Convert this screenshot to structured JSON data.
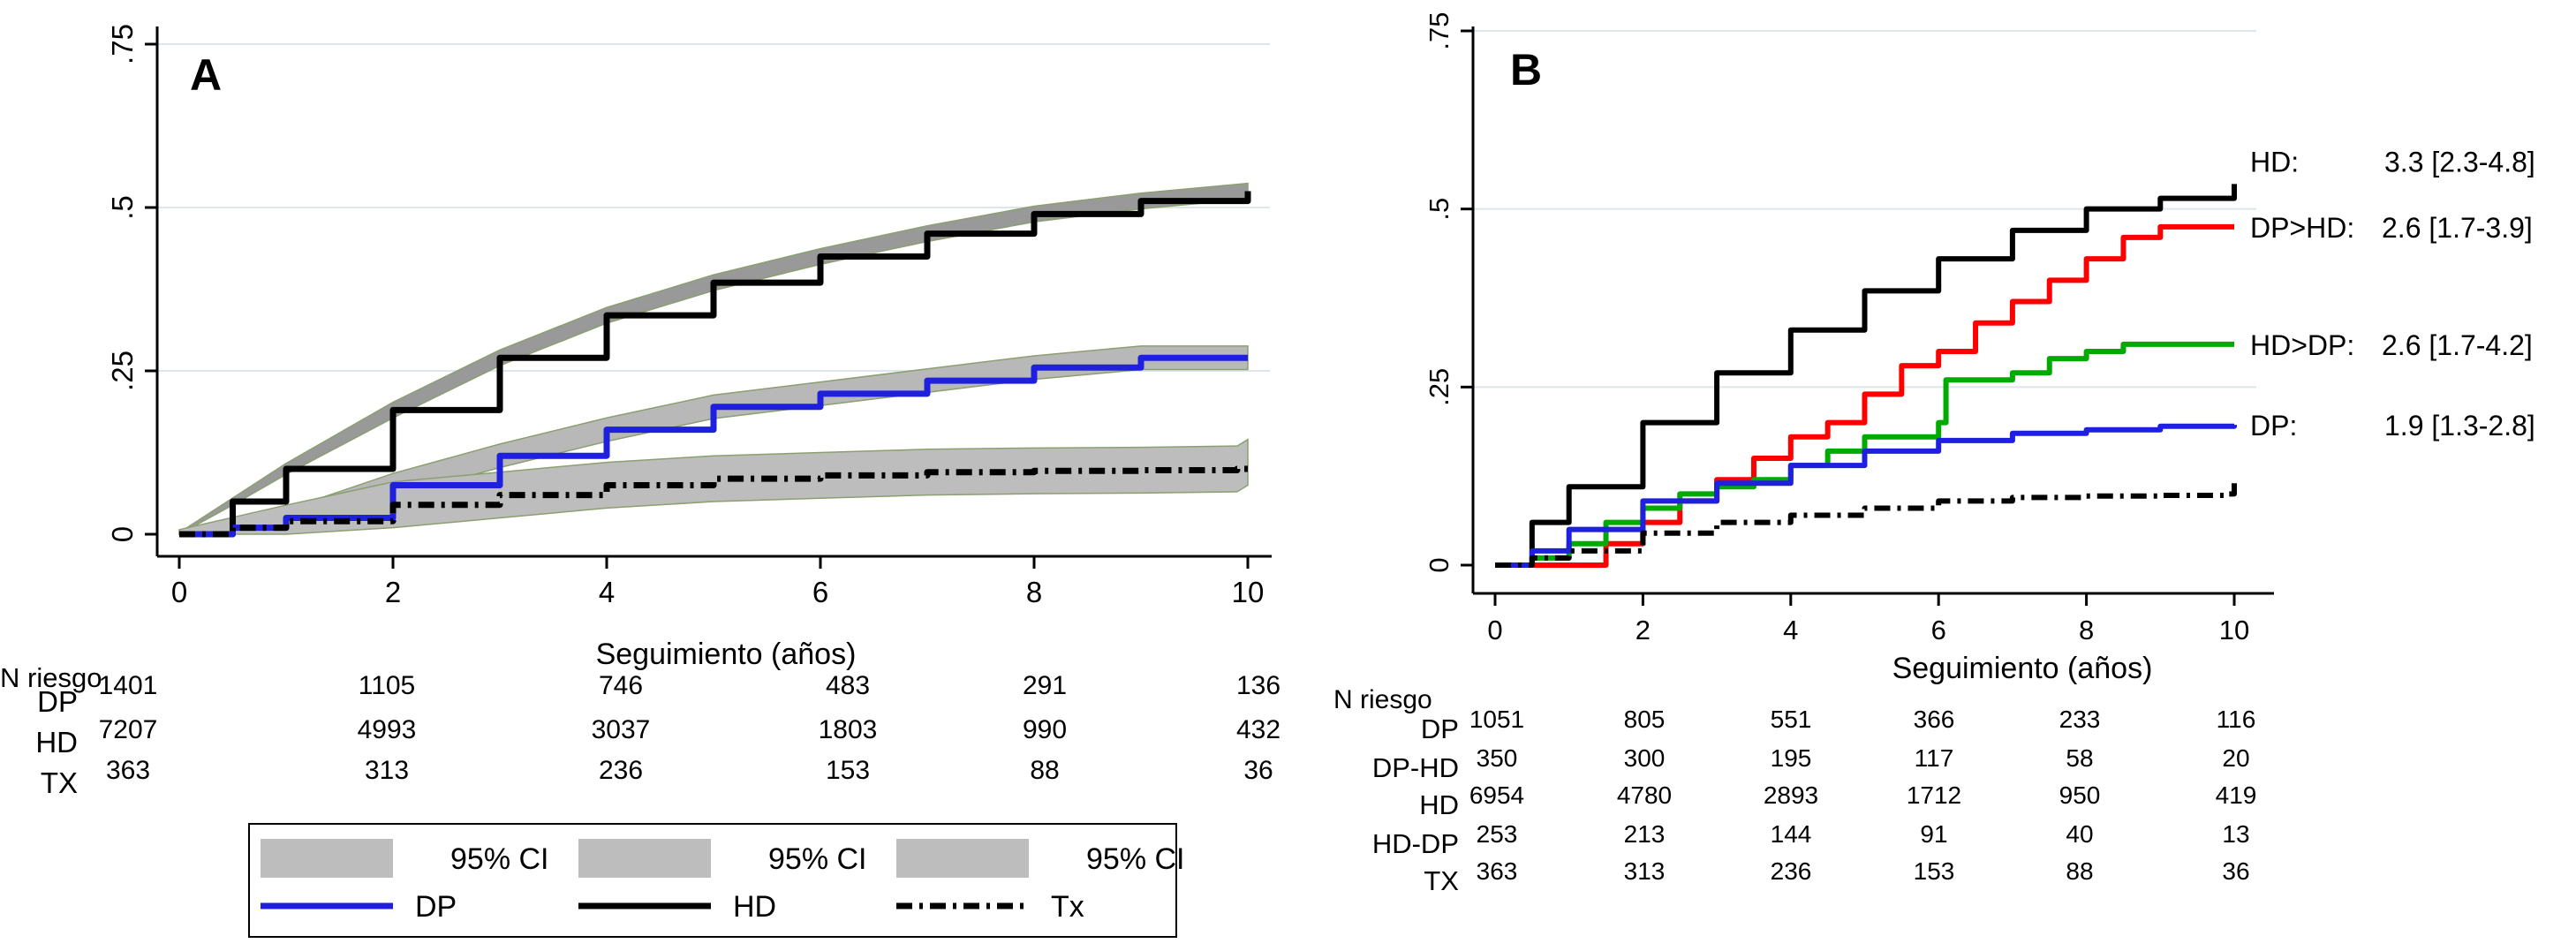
{
  "chart_data": [
    {
      "panel": "A",
      "type": "line",
      "xlabel": "Seguimiento (años)",
      "xticks": [
        0,
        2,
        4,
        6,
        8,
        10
      ],
      "yticks": [
        0,
        0.25,
        0.5,
        0.75
      ],
      "ytick_labels": [
        "0",
        ".25",
        ".5",
        ".75"
      ],
      "xlim": [
        0,
        10
      ],
      "ylim": [
        0,
        0.75
      ],
      "grid": "horizontal",
      "series": [
        {
          "name": "HD",
          "color": "#000000",
          "style": "solid",
          "ci_color": "#999999",
          "x": [
            0,
            0.5,
            1,
            2,
            3,
            4,
            5,
            6,
            7,
            8,
            9,
            10
          ],
          "values": [
            0,
            0.05,
            0.1,
            0.19,
            0.27,
            0.335,
            0.385,
            0.425,
            0.46,
            0.49,
            0.51,
            0.525
          ]
        },
        {
          "name": "DP",
          "color": "#1f1fe0",
          "style": "solid",
          "ci_color": "#b8b8b8",
          "x": [
            0,
            0.5,
            1,
            2,
            3,
            4,
            5,
            6,
            7,
            8,
            9,
            10
          ],
          "values": [
            0,
            0.01,
            0.025,
            0.075,
            0.12,
            0.16,
            0.195,
            0.215,
            0.235,
            0.255,
            0.27,
            0.27
          ]
        },
        {
          "name": "Tx",
          "color": "#000000",
          "style": "dashdot",
          "ci_color": "#bdbdbd",
          "x": [
            0,
            0.5,
            1,
            2,
            3,
            4,
            5,
            6,
            7,
            8,
            9,
            9.9,
            10
          ],
          "values": [
            0,
            0.01,
            0.02,
            0.045,
            0.06,
            0.075,
            0.085,
            0.09,
            0.095,
            0.097,
            0.098,
            0.1,
            0.11
          ]
        }
      ],
      "risk_table": {
        "title": "N riesgo",
        "rows": [
          {
            "label": "DP",
            "values": [
              "1401",
              "1105",
              "746",
              "483",
              "291",
              "136"
            ]
          },
          {
            "label": "HD",
            "values": [
              "7207",
              "4993",
              "3037",
              "1803",
              "990",
              "432"
            ]
          },
          {
            "label": "TX",
            "values": [
              "363",
              "313",
              "236",
              "153",
              "88",
              "36"
            ]
          }
        ]
      },
      "legend": {
        "placement": "bottom",
        "items": [
          {
            "label": "95% CI",
            "kind": "band"
          },
          {
            "label": "95% CI",
            "kind": "band"
          },
          {
            "label": "95% CI",
            "kind": "band"
          },
          {
            "label": "DP",
            "kind": "line",
            "color": "#1f1fe0",
            "style": "solid"
          },
          {
            "label": "HD",
            "kind": "line",
            "color": "#000000",
            "style": "solid"
          },
          {
            "label": "Tx",
            "kind": "line",
            "color": "#000000",
            "style": "dashdot"
          }
        ]
      }
    },
    {
      "panel": "B",
      "type": "line",
      "xlabel": "Seguimiento (años)",
      "xticks": [
        0,
        2,
        4,
        6,
        8,
        10
      ],
      "yticks": [
        0,
        0.25,
        0.5,
        0.75
      ],
      "ytick_labels": [
        "0",
        ".25",
        ".5",
        ".75"
      ],
      "xlim": [
        0,
        10
      ],
      "ylim": [
        0,
        0.75
      ],
      "grid": "horizontal",
      "series": [
        {
          "name": "HD",
          "color": "#000000",
          "style": "solid",
          "x": [
            0,
            0.5,
            1,
            2,
            3,
            4,
            5,
            6,
            7,
            8,
            9,
            10
          ],
          "values": [
            0,
            0.06,
            0.11,
            0.2,
            0.27,
            0.33,
            0.385,
            0.43,
            0.47,
            0.5,
            0.515,
            0.535
          ]
        },
        {
          "name": "DP>HD",
          "color": "#ff0000",
          "style": "solid",
          "x": [
            0,
            0.5,
            1,
            1.5,
            2,
            2.5,
            3,
            3.5,
            4,
            4.5,
            5,
            5.5,
            6,
            6.5,
            7,
            7.5,
            8,
            8.5,
            9,
            10
          ],
          "values": [
            0,
            0,
            0,
            0.03,
            0.06,
            0.09,
            0.12,
            0.15,
            0.18,
            0.2,
            0.24,
            0.28,
            0.3,
            0.34,
            0.37,
            0.4,
            0.43,
            0.46,
            0.475,
            0.475
          ]
        },
        {
          "name": "HD>DP",
          "color": "#00aa00",
          "style": "solid",
          "x": [
            0,
            0.5,
            1,
            1.5,
            2,
            2.5,
            3,
            3.5,
            4,
            4.5,
            5,
            5.5,
            6,
            6.1,
            6.5,
            7,
            7.5,
            8,
            8.5,
            9,
            10
          ],
          "values": [
            0,
            0.01,
            0.03,
            0.06,
            0.08,
            0.1,
            0.11,
            0.12,
            0.14,
            0.16,
            0.18,
            0.18,
            0.2,
            0.26,
            0.26,
            0.27,
            0.29,
            0.3,
            0.31,
            0.31,
            0.31
          ]
        },
        {
          "name": "DP",
          "color": "#1f1fe0",
          "style": "solid",
          "x": [
            0,
            0.5,
            1,
            2,
            3,
            4,
            5,
            6,
            7,
            8,
            9,
            10
          ],
          "values": [
            0,
            0.02,
            0.05,
            0.09,
            0.115,
            0.14,
            0.16,
            0.175,
            0.185,
            0.19,
            0.195,
            0.197
          ]
        },
        {
          "name": "TX",
          "color": "#000000",
          "style": "dashdot",
          "x": [
            0,
            0.5,
            1,
            2,
            3,
            4,
            5,
            6,
            7,
            8,
            9,
            9.9,
            10
          ],
          "values": [
            0,
            0.01,
            0.02,
            0.045,
            0.06,
            0.07,
            0.08,
            0.09,
            0.095,
            0.097,
            0.098,
            0.1,
            0.115
          ]
        }
      ],
      "annotations": [
        {
          "series": "HD",
          "label": "HD:",
          "value": "3.3 [2.3-4.8]"
        },
        {
          "series": "DP>HD",
          "label": "DP>HD:",
          "value": "2.6 [1.7-3.9]"
        },
        {
          "series": "HD>DP",
          "label": "HD>DP:",
          "value": "2.6 [1.7-4.2]"
        },
        {
          "series": "DP",
          "label": "DP:",
          "value": "1.9 [1.3-2.8]"
        }
      ],
      "risk_table": {
        "title": "N riesgo",
        "rows": [
          {
            "label": "DP",
            "values": [
              "1051",
              "805",
              "551",
              "366",
              "233",
              "116"
            ]
          },
          {
            "label": "DP-HD",
            "values": [
              "350",
              "300",
              "195",
              "117",
              "58",
              "20"
            ]
          },
          {
            "label": "HD",
            "values": [
              "6954",
              "4780",
              "2893",
              "1712",
              "950",
              "419"
            ]
          },
          {
            "label": "HD-DP",
            "values": [
              "253",
              "213",
              "144",
              "91",
              "40",
              "13"
            ]
          },
          {
            "label": "TX",
            "values": [
              "363",
              "313",
              "236",
              "153",
              "88",
              "36"
            ]
          }
        ]
      }
    }
  ]
}
